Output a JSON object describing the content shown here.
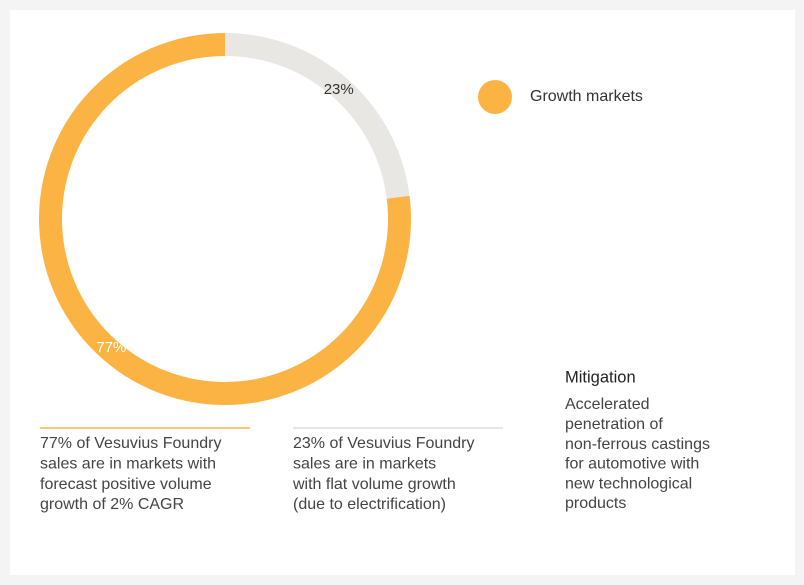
{
  "chart_data": {
    "type": "pie",
    "donut": true,
    "categories": [
      "Growth markets",
      null
    ],
    "values": [
      77,
      23
    ],
    "value_labels": [
      "77%",
      "23%"
    ],
    "colors": [
      "#fbb444",
      "#e8e7e4"
    ],
    "legend": [
      "Growth markets"
    ],
    "legend_position": "top-right",
    "notes": [
      [
        "77% of Vesuvius Foundry",
        "sales are in markets with",
        "forecast positive volume",
        "growth of 2% CAGR"
      ],
      [
        "23% of Vesuvius Foundry",
        "sales are in markets",
        "with flat volume growth",
        "(due to electrification)"
      ]
    ],
    "mitigation": {
      "title": "Mitigation",
      "text": [
        "Accelerated",
        "penetration of",
        "non-ferrous castings",
        "for automotive with",
        "new technological",
        "products"
      ]
    }
  }
}
